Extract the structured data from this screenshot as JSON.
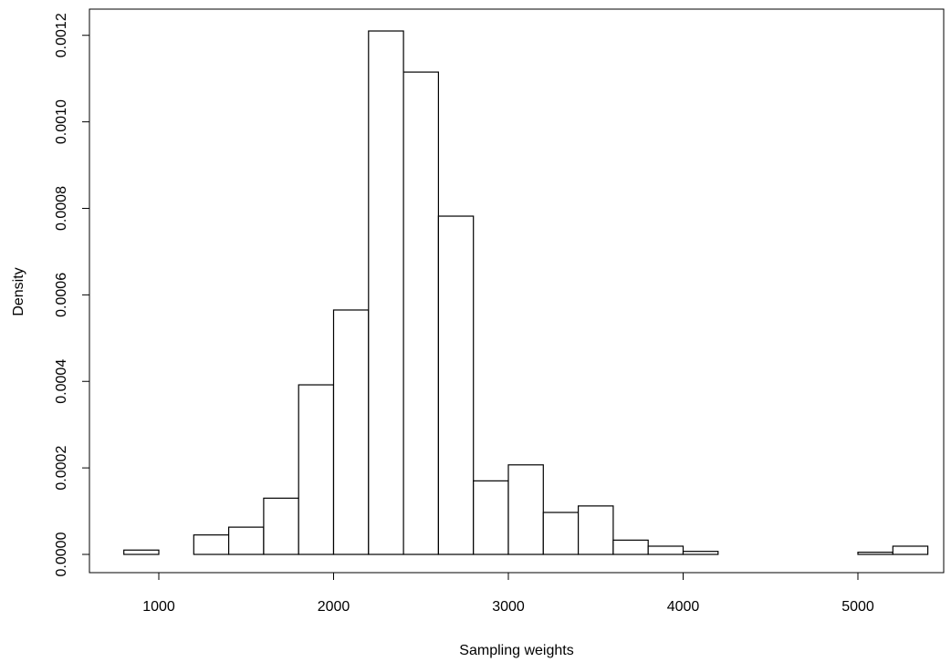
{
  "chart_data": {
    "type": "bar",
    "subtype": "histogram",
    "title": "",
    "xlabel": "Sampling weights",
    "ylabel": "Density",
    "xlim": [
      800,
      5400
    ],
    "ylim": [
      0,
      0.00121
    ],
    "x_ticks": [
      1000,
      2000,
      3000,
      4000,
      5000
    ],
    "x_tick_labels": [
      "1000",
      "2000",
      "3000",
      "4000",
      "5000"
    ],
    "y_ticks": [
      0,
      0.0002,
      0.0004,
      0.0006,
      0.0008,
      0.001,
      0.0012
    ],
    "y_tick_labels": [
      "0.0000",
      "0.0002",
      "0.0004",
      "0.0006",
      "0.0008",
      "0.0010",
      "0.0012"
    ],
    "grid": false,
    "legend": "none",
    "bins": [
      {
        "x0": 800,
        "x1": 1000,
        "density": 1e-05
      },
      {
        "x0": 1000,
        "x1": 1200,
        "density": 0.0
      },
      {
        "x0": 1200,
        "x1": 1400,
        "density": 4.5e-05
      },
      {
        "x0": 1400,
        "x1": 1600,
        "density": 6.3e-05
      },
      {
        "x0": 1600,
        "x1": 1800,
        "density": 0.00013
      },
      {
        "x0": 1800,
        "x1": 2000,
        "density": 0.000392
      },
      {
        "x0": 2000,
        "x1": 2200,
        "density": 0.000565
      },
      {
        "x0": 2200,
        "x1": 2400,
        "density": 0.00121
      },
      {
        "x0": 2400,
        "x1": 2600,
        "density": 0.001115
      },
      {
        "x0": 2600,
        "x1": 2800,
        "density": 0.000782
      },
      {
        "x0": 2800,
        "x1": 3000,
        "density": 0.00017
      },
      {
        "x0": 3000,
        "x1": 3200,
        "density": 0.000207
      },
      {
        "x0": 3200,
        "x1": 3400,
        "density": 9.7e-05
      },
      {
        "x0": 3400,
        "x1": 3600,
        "density": 0.000112
      },
      {
        "x0": 3600,
        "x1": 3800,
        "density": 3.3e-05
      },
      {
        "x0": 3800,
        "x1": 4000,
        "density": 1.9e-05
      },
      {
        "x0": 4000,
        "x1": 4200,
        "density": 7e-06
      },
      {
        "x0": 4200,
        "x1": 4400,
        "density": 0.0
      },
      {
        "x0": 4400,
        "x1": 4600,
        "density": 0.0
      },
      {
        "x0": 4600,
        "x1": 4800,
        "density": 0.0
      },
      {
        "x0": 4800,
        "x1": 5000,
        "density": 0.0
      },
      {
        "x0": 5000,
        "x1": 5200,
        "density": 5e-06
      },
      {
        "x0": 5200,
        "x1": 5400,
        "density": 1.9e-05
      }
    ]
  }
}
